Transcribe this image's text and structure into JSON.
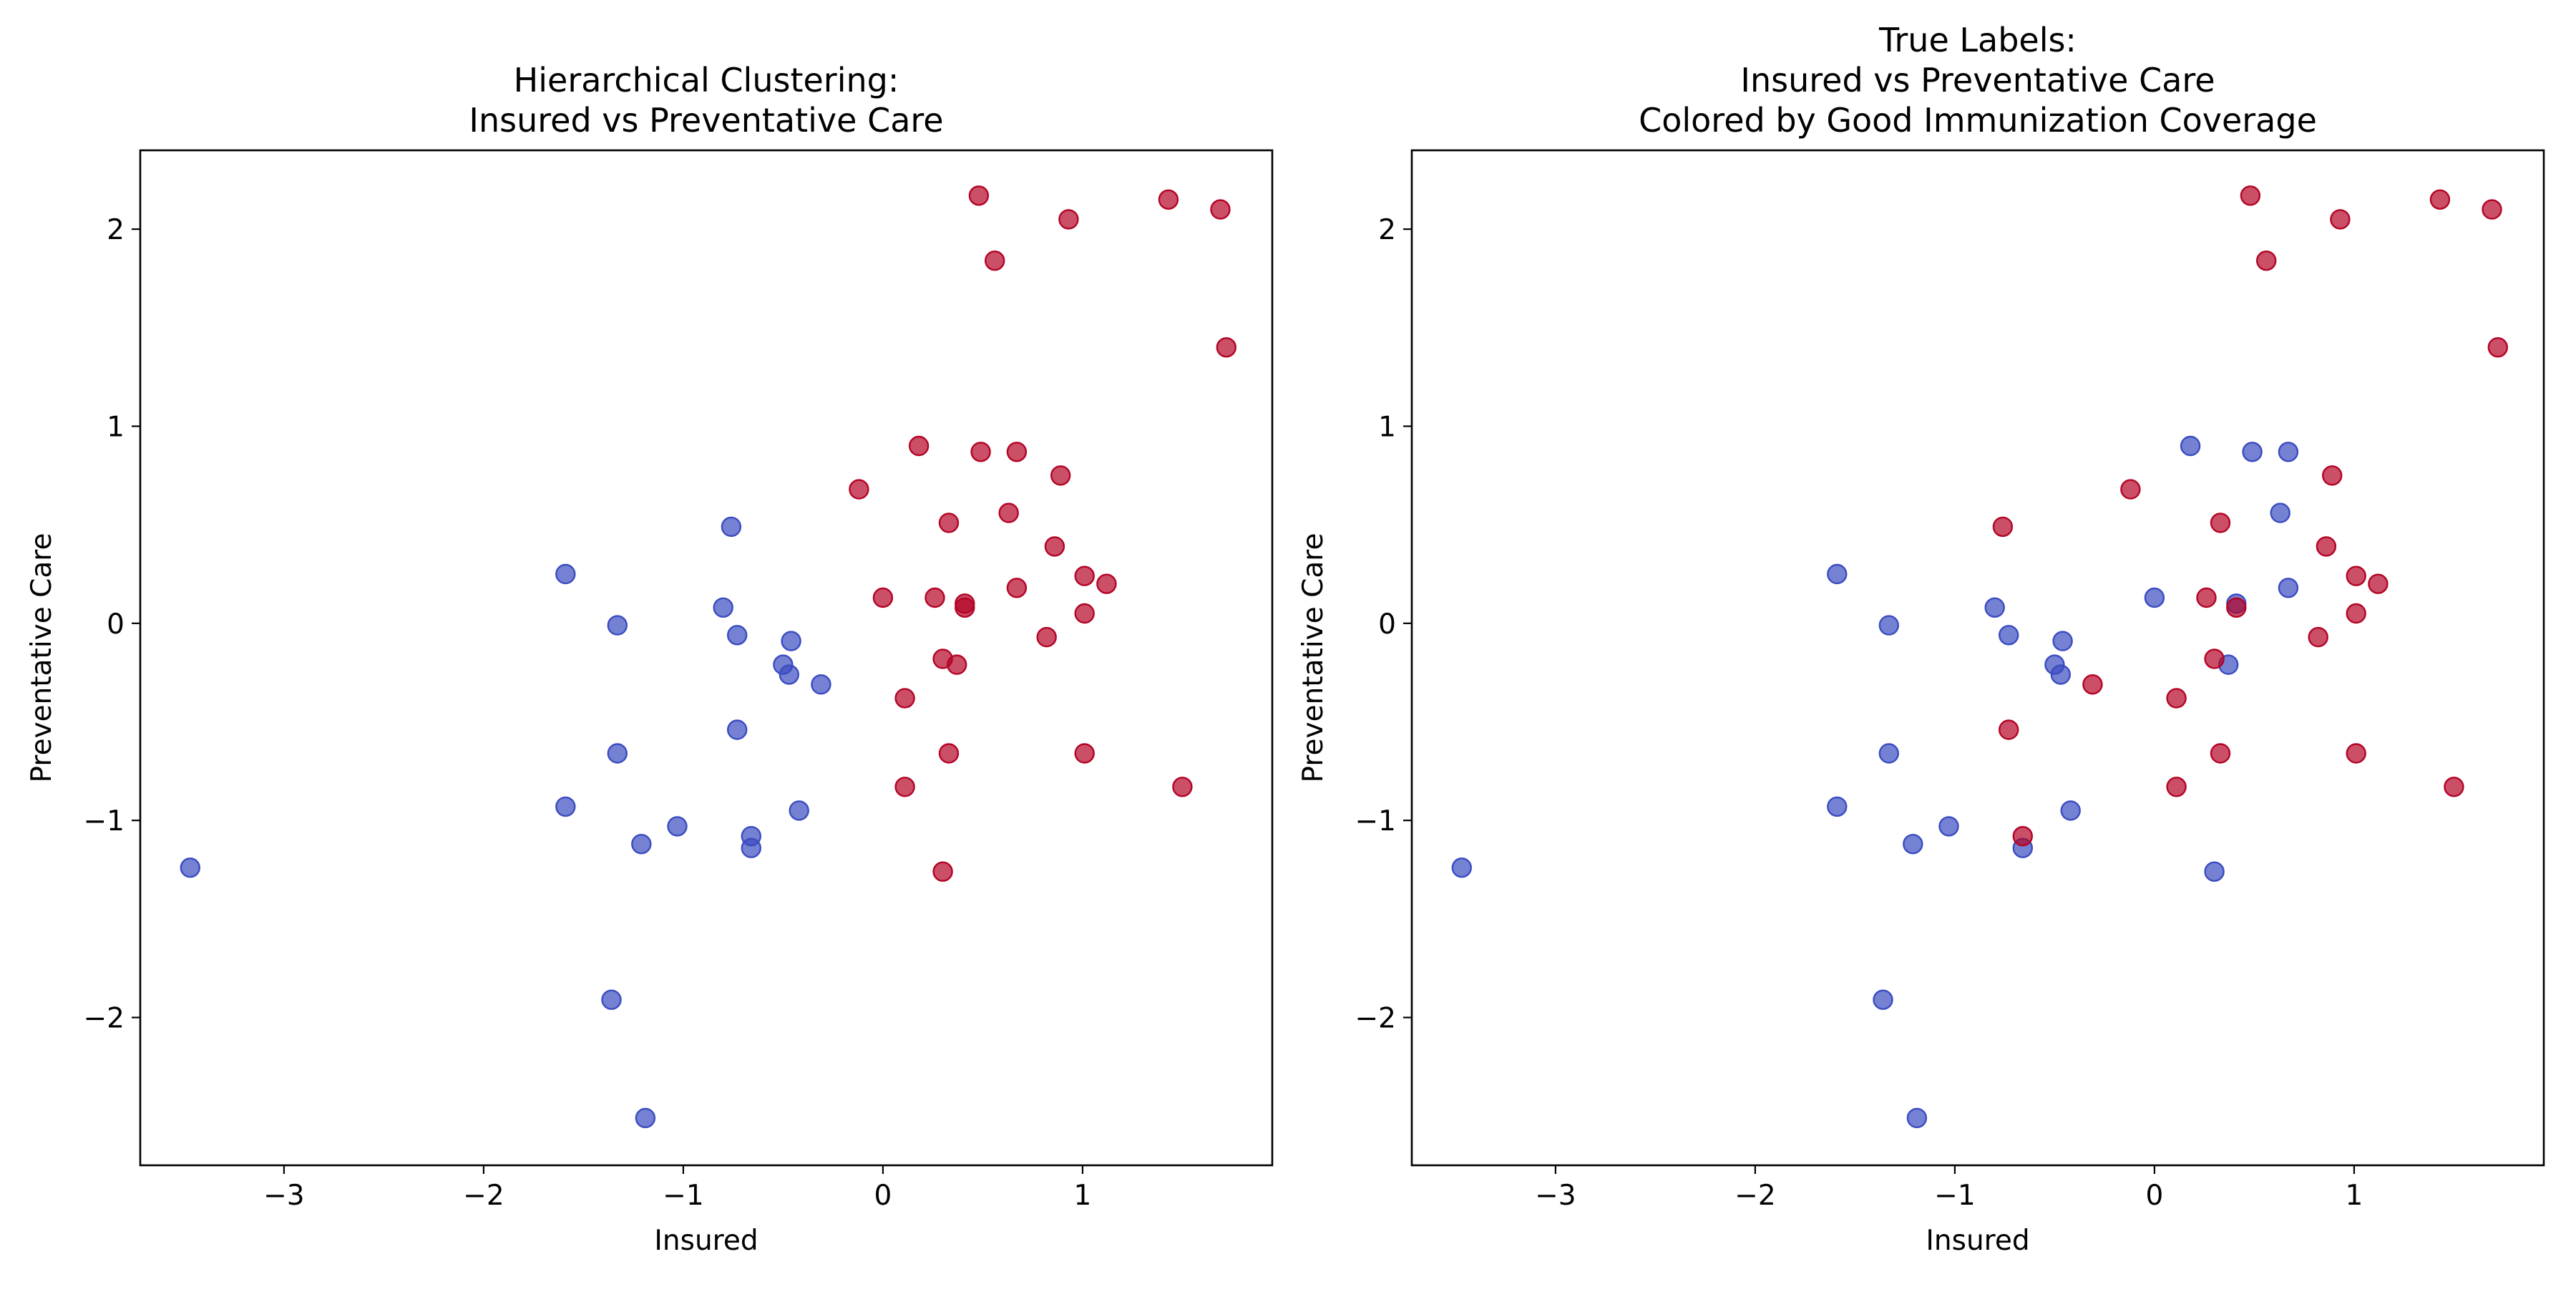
{
  "colors": {
    "cluster_0": "#3b4cc0",
    "cluster_1": "#b40426"
  },
  "chart_data": [
    {
      "type": "scatter",
      "title": "Hierarchical Clustering:\nInsured vs Preventative Care",
      "xlabel": "Insured",
      "ylabel": "Preventative Care",
      "xlim": [
        -3.72,
        1.95
      ],
      "ylim": [
        -2.75,
        2.4
      ],
      "xticks": [
        -3,
        -2,
        -1,
        0,
        1
      ],
      "yticks": [
        -2,
        -1,
        0,
        1,
        2
      ],
      "tick_labels_x": [
        "−3",
        "−2",
        "−1",
        "0",
        "1"
      ],
      "tick_labels_y": [
        "−2",
        "−1",
        "0",
        "1",
        "2"
      ],
      "grid": false,
      "series": [
        {
          "color": "#3b4cc0",
          "points": [
            [
              -3.47,
              -1.24
            ],
            [
              -1.59,
              0.25
            ],
            [
              -1.59,
              -0.93
            ],
            [
              -1.36,
              -1.91
            ],
            [
              -1.33,
              -0.01
            ],
            [
              -1.33,
              -0.66
            ],
            [
              -1.21,
              -1.12
            ],
            [
              -1.19,
              -2.51
            ],
            [
              -1.03,
              -1.03
            ],
            [
              -0.8,
              0.08
            ],
            [
              -0.76,
              0.49
            ],
            [
              -0.73,
              -0.06
            ],
            [
              -0.73,
              -0.54
            ],
            [
              -0.66,
              -1.08
            ],
            [
              -0.66,
              -1.14
            ],
            [
              -0.5,
              -0.21
            ],
            [
              -0.47,
              -0.26
            ],
            [
              -0.46,
              -0.09
            ],
            [
              -0.42,
              -0.95
            ],
            [
              -0.31,
              -0.31
            ]
          ]
        },
        {
          "color": "#b40426",
          "points": [
            [
              0.48,
              2.17
            ],
            [
              0.93,
              2.05
            ],
            [
              1.43,
              2.15
            ],
            [
              1.69,
              2.1
            ],
            [
              0.56,
              1.84
            ],
            [
              1.72,
              1.4
            ],
            [
              0.18,
              0.9
            ],
            [
              0.49,
              0.87
            ],
            [
              0.67,
              0.87
            ],
            [
              0.89,
              0.75
            ],
            [
              -0.12,
              0.68
            ],
            [
              0.33,
              0.51
            ],
            [
              0.63,
              0.56
            ],
            [
              0.86,
              0.39
            ],
            [
              1.01,
              0.24
            ],
            [
              1.12,
              0.2
            ],
            [
              0.67,
              0.18
            ],
            [
              0.0,
              0.13
            ],
            [
              0.26,
              0.13
            ],
            [
              0.41,
              0.1
            ],
            [
              0.41,
              0.08
            ],
            [
              1.01,
              0.05
            ],
            [
              0.82,
              -0.07
            ],
            [
              0.3,
              -0.18
            ],
            [
              0.37,
              -0.21
            ],
            [
              0.11,
              -0.38
            ],
            [
              0.33,
              -0.66
            ],
            [
              1.01,
              -0.66
            ],
            [
              0.11,
              -0.83
            ],
            [
              1.5,
              -0.83
            ],
            [
              0.3,
              -1.26
            ]
          ]
        }
      ]
    },
    {
      "type": "scatter",
      "title": "True Labels:\nInsured vs Preventative Care\nColored by Good Immunization Coverage",
      "xlabel": "Insured",
      "ylabel": "Preventative Care",
      "xlim": [
        -3.72,
        1.95
      ],
      "ylim": [
        -2.75,
        2.4
      ],
      "xticks": [
        -3,
        -2,
        -1,
        0,
        1
      ],
      "yticks": [
        -2,
        -1,
        0,
        1,
        2
      ],
      "tick_labels_x": [
        "−3",
        "−2",
        "−1",
        "0",
        "1"
      ],
      "tick_labels_y": [
        "−2",
        "−1",
        "0",
        "1",
        "2"
      ],
      "grid": false,
      "series": [
        {
          "color": "#3b4cc0",
          "points": [
            [
              -3.47,
              -1.24
            ],
            [
              -1.59,
              0.25
            ],
            [
              -1.59,
              -0.93
            ],
            [
              -1.36,
              -1.91
            ],
            [
              -1.33,
              -0.01
            ],
            [
              -1.33,
              -0.66
            ],
            [
              -1.21,
              -1.12
            ],
            [
              -1.19,
              -2.51
            ],
            [
              -1.03,
              -1.03
            ],
            [
              -0.8,
              0.08
            ],
            [
              -0.73,
              -0.06
            ],
            [
              -0.66,
              -1.14
            ],
            [
              -0.5,
              -0.21
            ],
            [
              -0.47,
              -0.26
            ],
            [
              -0.46,
              -0.09
            ],
            [
              -0.42,
              -0.95
            ],
            [
              0.0,
              0.13
            ],
            [
              0.18,
              0.9
            ],
            [
              0.49,
              0.87
            ],
            [
              0.67,
              0.87
            ],
            [
              0.63,
              0.56
            ],
            [
              0.67,
              0.18
            ],
            [
              0.41,
              0.1
            ],
            [
              0.37,
              -0.21
            ],
            [
              0.3,
              -1.26
            ]
          ]
        },
        {
          "color": "#b40426",
          "points": [
            [
              0.48,
              2.17
            ],
            [
              0.93,
              2.05
            ],
            [
              1.43,
              2.15
            ],
            [
              1.69,
              2.1
            ],
            [
              0.56,
              1.84
            ],
            [
              1.72,
              1.4
            ],
            [
              0.89,
              0.75
            ],
            [
              -0.12,
              0.68
            ],
            [
              0.33,
              0.51
            ],
            [
              0.86,
              0.39
            ],
            [
              1.01,
              0.24
            ],
            [
              1.12,
              0.2
            ],
            [
              -0.76,
              0.49
            ],
            [
              0.26,
              0.13
            ],
            [
              0.41,
              0.08
            ],
            [
              1.01,
              0.05
            ],
            [
              0.82,
              -0.07
            ],
            [
              0.3,
              -0.18
            ],
            [
              -0.31,
              -0.31
            ],
            [
              0.11,
              -0.38
            ],
            [
              -0.73,
              -0.54
            ],
            [
              0.33,
              -0.66
            ],
            [
              1.01,
              -0.66
            ],
            [
              0.11,
              -0.83
            ],
            [
              1.5,
              -0.83
            ],
            [
              -0.66,
              -1.08
            ]
          ]
        }
      ]
    }
  ]
}
